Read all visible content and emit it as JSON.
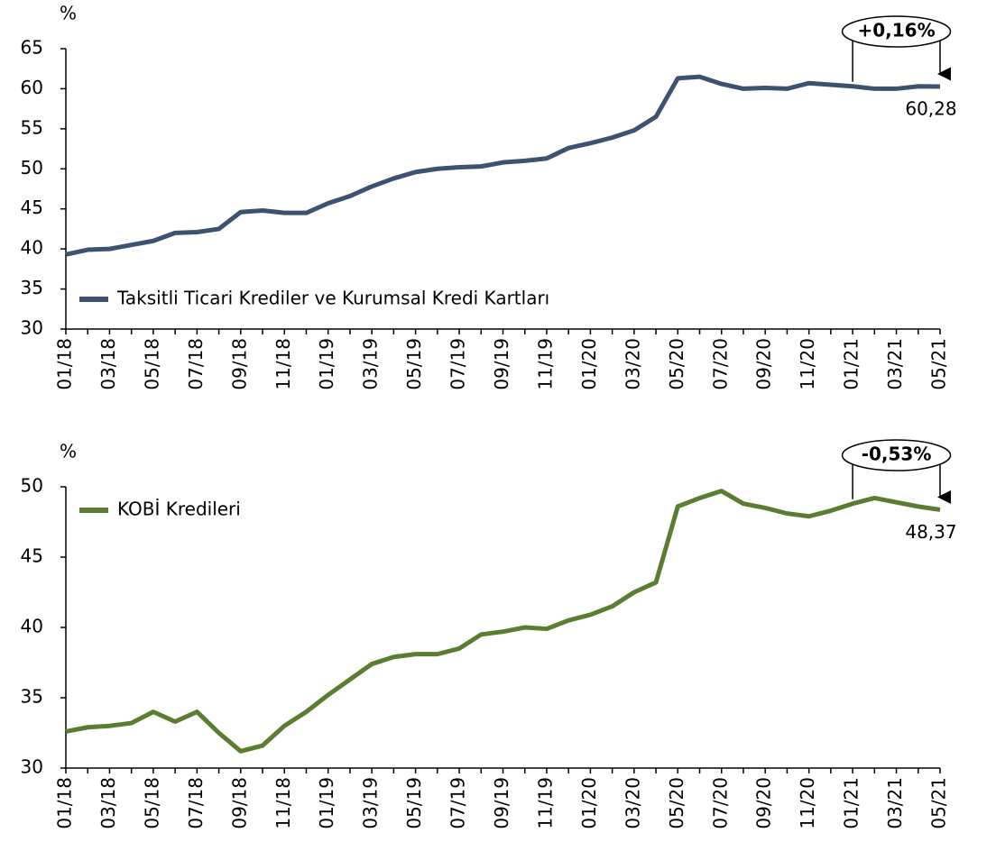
{
  "chart_data": [
    {
      "type": "line",
      "unit_label": "%",
      "legend": "lower left",
      "categories": [
        "01/18",
        null,
        "03/18",
        null,
        "05/18",
        null,
        "07/18",
        null,
        "09/18",
        null,
        "11/18",
        null,
        "01/19",
        null,
        "03/19",
        null,
        "05/19",
        null,
        "07/19",
        null,
        "09/19",
        null,
        "11/19",
        null,
        "01/20",
        null,
        "03/20",
        null,
        "05/20",
        null,
        "07/20",
        null,
        "09/20",
        null,
        "11/20",
        null,
        "01/21",
        null,
        "03/21",
        null,
        "05/21"
      ],
      "ylim": [
        30,
        65
      ],
      "yticks": [
        30,
        35,
        40,
        45,
        50,
        55,
        60,
        65
      ],
      "annotation": "+0,16%",
      "series": [
        {
          "name": "Taksitli Ticari Krediler ve Kurumsal Kredi Kartları",
          "color": "#3d5170",
          "values": [
            39.3,
            39.9,
            40.0,
            40.5,
            41.0,
            42.0,
            42.1,
            42.5,
            44.6,
            44.8,
            44.5,
            44.5,
            45.7,
            46.6,
            47.8,
            48.8,
            49.6,
            50.0,
            50.2,
            50.3,
            50.8,
            51.0,
            51.3,
            52.6,
            53.2,
            53.9,
            54.8,
            56.5,
            61.3,
            61.5,
            60.6,
            60.0,
            60.1,
            60.0,
            60.7,
            60.5,
            60.3,
            60.0,
            60.0,
            60.3,
            60.28
          ],
          "value_labels": [
            null,
            null,
            null,
            null,
            null,
            null,
            null,
            null,
            null,
            null,
            null,
            null,
            null,
            null,
            null,
            null,
            null,
            null,
            null,
            null,
            null,
            null,
            null,
            null,
            null,
            null,
            null,
            null,
            null,
            null,
            null,
            null,
            null,
            null,
            null,
            null,
            null,
            null,
            null,
            null,
            "60,28"
          ]
        }
      ]
    },
    {
      "type": "line",
      "unit_label": "%",
      "legend": "upper left",
      "categories": [
        "01/18",
        null,
        "03/18",
        null,
        "05/18",
        null,
        "07/18",
        null,
        "09/18",
        null,
        "11/18",
        null,
        "01/19",
        null,
        "03/19",
        null,
        "05/19",
        null,
        "07/19",
        null,
        "09/19",
        null,
        "11/19",
        null,
        "01/20",
        null,
        "03/20",
        null,
        "05/20",
        null,
        "07/20",
        null,
        "09/20",
        null,
        "11/20",
        null,
        "01/21",
        null,
        "03/21",
        null,
        "05/21"
      ],
      "ylim": [
        30,
        50
      ],
      "yticks": [
        30,
        35,
        40,
        45,
        50
      ],
      "annotation": "-0,53%",
      "series": [
        {
          "name": "KOBİ Kredileri",
          "color": "#5a7d2f",
          "values": [
            32.6,
            32.9,
            33.0,
            33.2,
            34.0,
            33.3,
            34.0,
            32.5,
            31.2,
            31.6,
            33.0,
            34.0,
            35.2,
            36.3,
            37.4,
            37.9,
            38.1,
            38.1,
            38.5,
            39.5,
            39.7,
            40.0,
            39.9,
            40.5,
            40.9,
            41.5,
            42.5,
            43.2,
            48.6,
            49.2,
            49.7,
            48.8,
            48.5,
            48.1,
            47.9,
            48.3,
            48.8,
            49.2,
            48.9,
            48.6,
            48.37
          ],
          "value_labels": [
            null,
            null,
            null,
            null,
            null,
            null,
            null,
            null,
            null,
            null,
            null,
            null,
            null,
            null,
            null,
            null,
            null,
            null,
            null,
            null,
            null,
            null,
            null,
            null,
            null,
            null,
            null,
            null,
            null,
            null,
            null,
            null,
            null,
            null,
            null,
            null,
            null,
            null,
            null,
            null,
            "48,37"
          ]
        }
      ]
    }
  ]
}
